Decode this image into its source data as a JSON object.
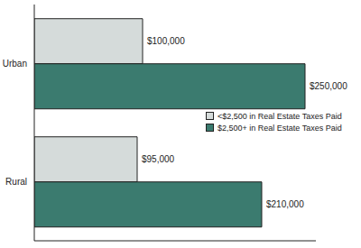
{
  "chart_data": {
    "type": "bar",
    "orientation": "horizontal",
    "categories": [
      "Urban",
      "Rural"
    ],
    "series": [
      {
        "name": "<$2,500 in Real Estate Taxes Paid",
        "color": "#d5dbda",
        "values": [
          100000,
          95000
        ],
        "value_labels": [
          "$100,000",
          "$95,000"
        ]
      },
      {
        "name": "$2,500+ in Real Estate Taxes Paid",
        "color": "#3b7b6f",
        "values": [
          250000,
          210000
        ],
        "value_labels": [
          "$250,000",
          "$210,000"
        ]
      }
    ],
    "xlim": [
      0,
      260000
    ],
    "data_labels": true,
    "tick_labels": "y",
    "grid": false,
    "legend": "right"
  }
}
